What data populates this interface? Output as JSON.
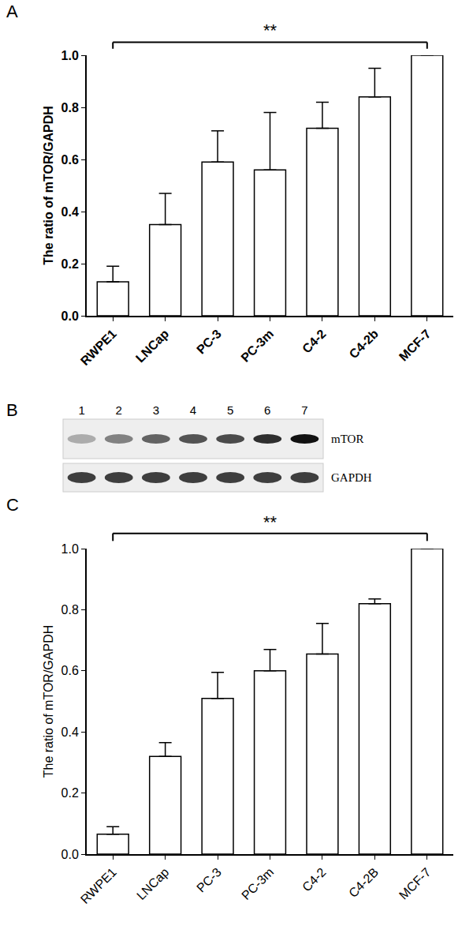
{
  "panel_labels": [
    "A",
    "B",
    "C"
  ],
  "chart_data": [
    {
      "type": "bar",
      "y_label": "The ratio of mTOR/GAPDH",
      "categories": [
        "RWPE1",
        "LNCap",
        "PC-3",
        "PC-3m",
        "C4-2",
        "C4-2b",
        "MCF-7"
      ],
      "values": [
        0.13,
        0.35,
        0.59,
        0.56,
        0.72,
        0.84,
        1.0
      ],
      "errors": [
        0.06,
        0.12,
        0.12,
        0.22,
        0.1,
        0.11,
        0
      ],
      "color": "#777777",
      "ylim": [
        0,
        1.0
      ],
      "yticks": [
        {
          "value": 0,
          "label": "0.0"
        },
        0.2,
        0.4,
        0.6,
        0.8,
        {
          "value": 1.0,
          "label": "1.0"
        }
      ],
      "grid": false,
      "significance": {
        "from": "RWPE1",
        "to": "MCF-7",
        "label": "**"
      }
    },
    {
      "type": "bar",
      "y_label": "The ratio of mTOR/GAPDH",
      "categories": [
        "RWPE1",
        "LNCap",
        "PC-3",
        "PC-3m",
        "C4-2",
        "C4-2B",
        "MCF-7"
      ],
      "values": [
        0.065,
        0.32,
        0.51,
        0.6,
        0.655,
        0.82,
        1.0
      ],
      "errors": [
        0.025,
        0.045,
        0.085,
        0.07,
        0.1,
        0.015,
        0
      ],
      "color": "#aaaaaa",
      "ylim": [
        0,
        1.0
      ],
      "yticks": [
        {
          "value": 0,
          "label": "0.0"
        },
        0.2,
        0.4,
        0.6,
        0.8,
        {
          "value": 1.0,
          "label": "1.0"
        }
      ],
      "grid": false,
      "significance": {
        "from": "RWPE1",
        "to": "MCF-7",
        "label": "**"
      }
    }
  ],
  "blot": {
    "lanes": [
      1,
      2,
      3,
      4,
      5,
      6,
      7
    ],
    "rows": [
      "mTOR",
      "GAPDH"
    ]
  }
}
